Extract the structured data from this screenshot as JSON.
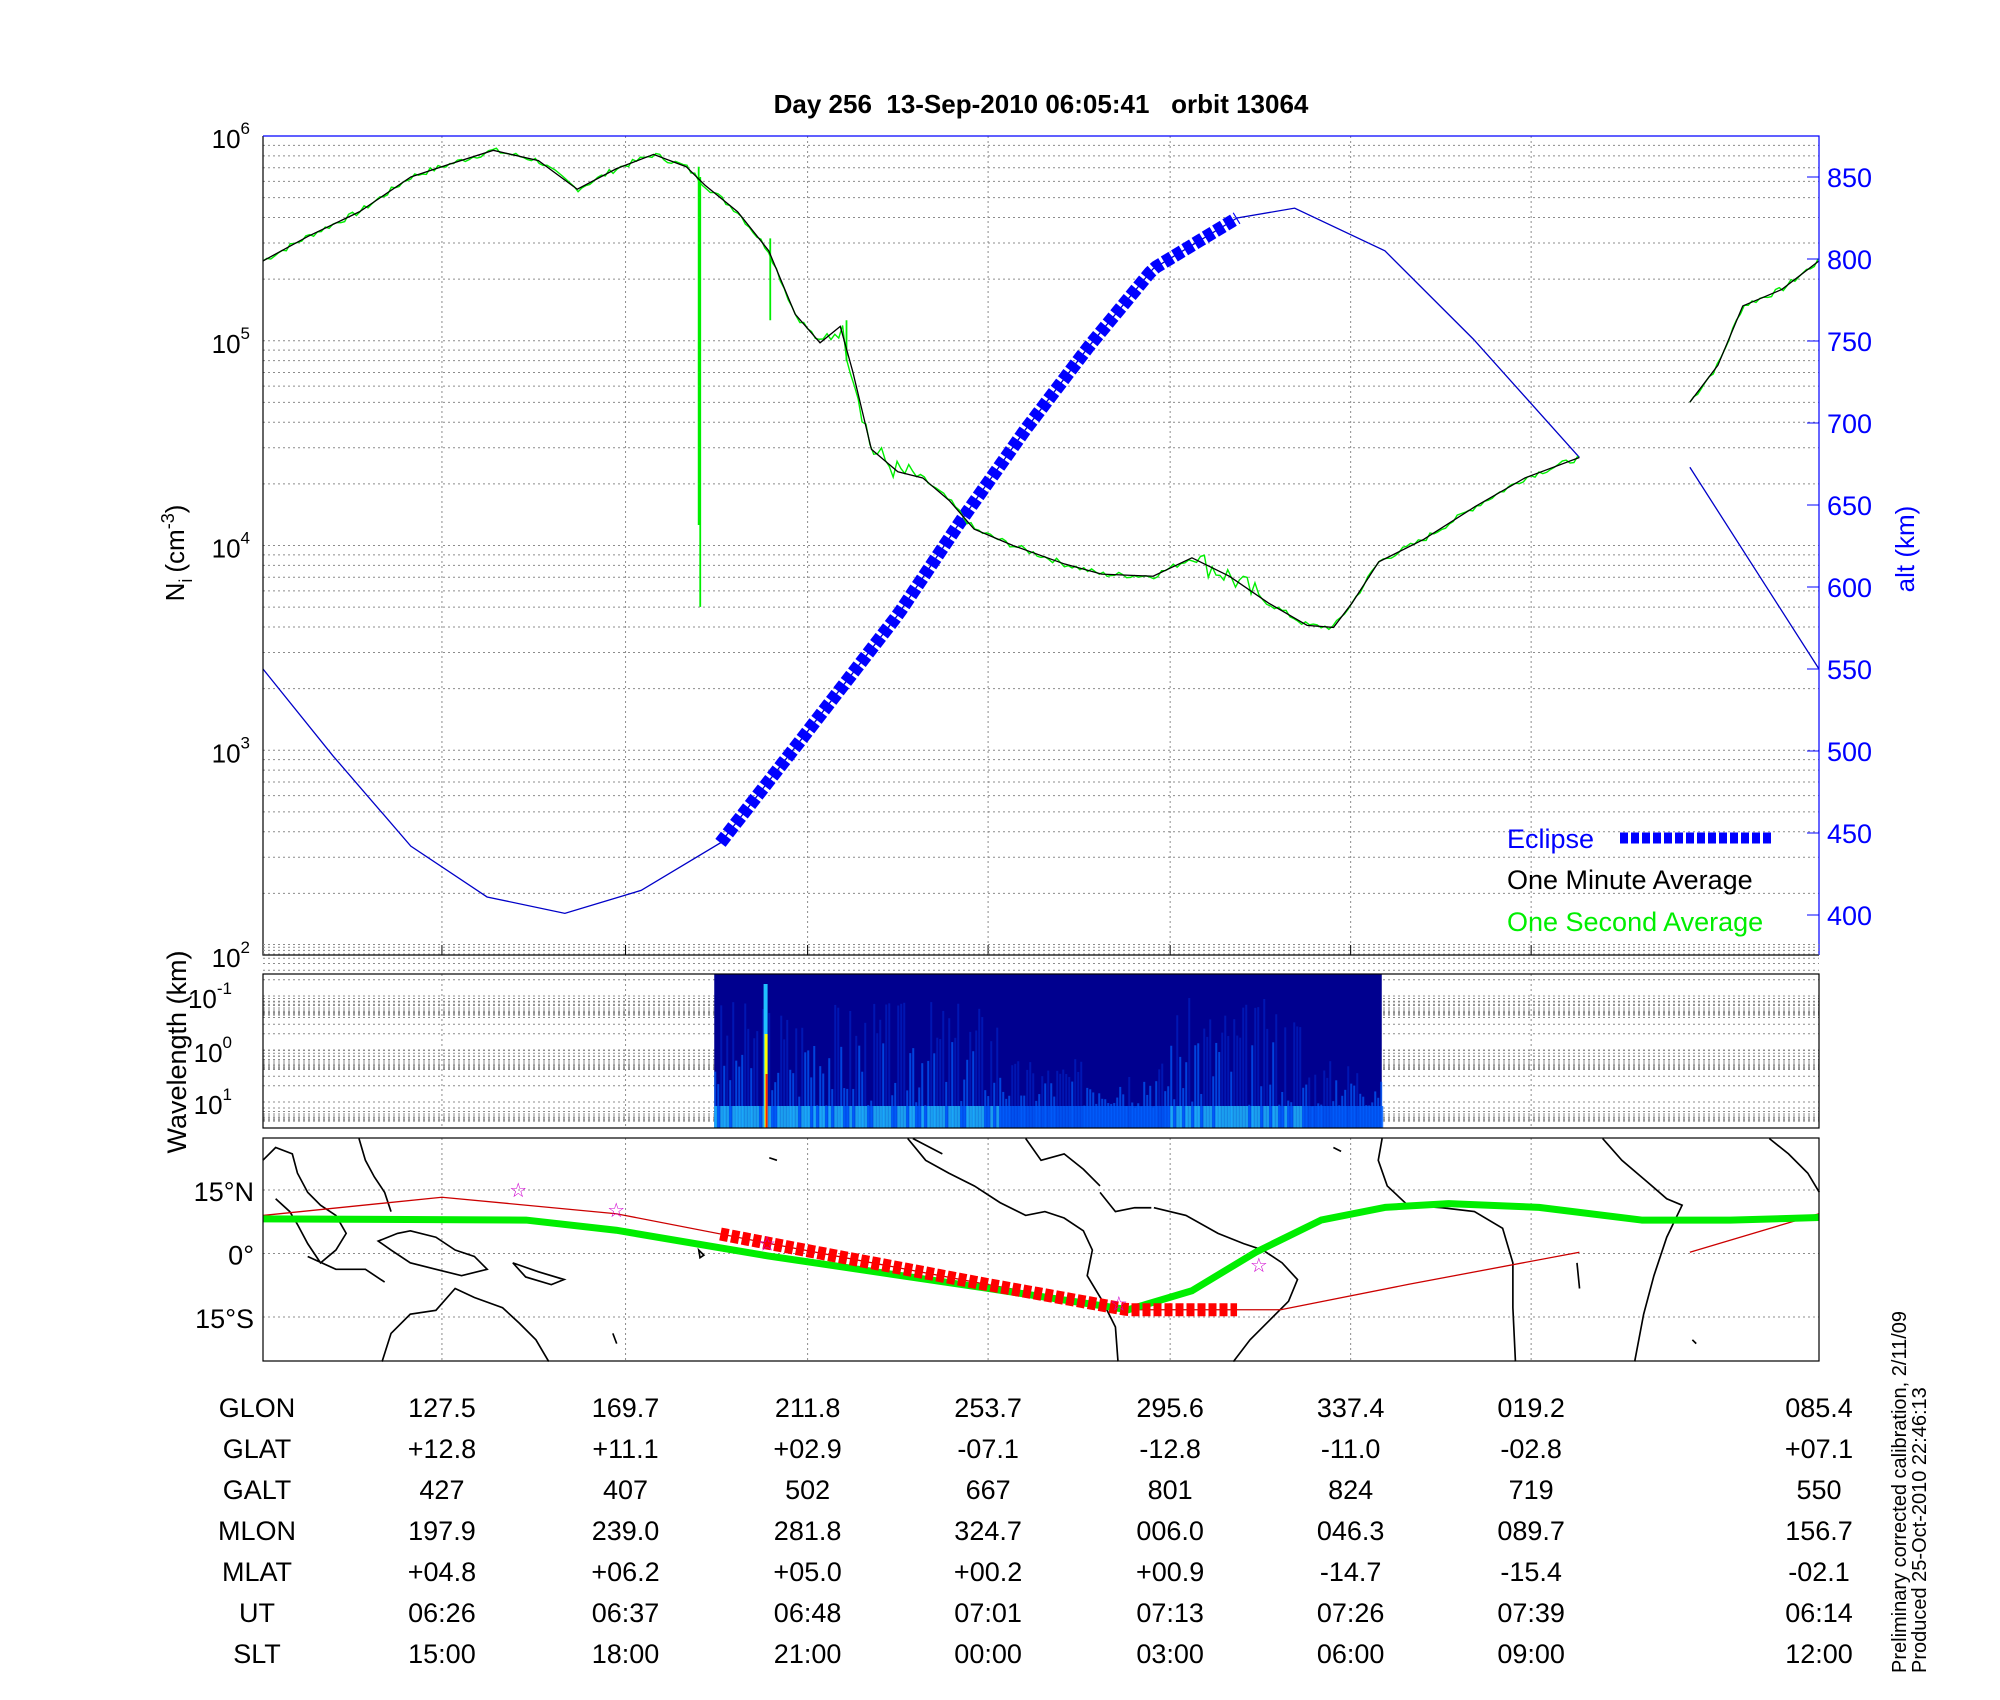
{
  "chart_data": [
    {
      "type": "line",
      "title": "Day 256  13-Sep-2010 06:05:41   orbit 13064",
      "xlabel": "",
      "x_units": "minutes from plot start",
      "xlim": [
        0,
        100
      ],
      "x_grid_ticks": [
        11.5,
        23.3,
        35.0,
        46.6,
        58.3,
        69.9,
        81.5
      ],
      "ylabel_left": {
        "base": "N",
        "sub": "i",
        "units": "(cm",
        "exp": "-3",
        "close": ")"
      },
      "ylabel_right": "alt (km)",
      "ylim_left_log10": [
        2,
        6
      ],
      "left_ticks": [
        {
          "base": "10",
          "exp": "6",
          "v": 6
        },
        {
          "base": "10",
          "exp": "5",
          "v": 5
        },
        {
          "base": "10",
          "exp": "4",
          "v": 4
        },
        {
          "base": "10",
          "exp": "3",
          "v": 3
        },
        {
          "base": "10",
          "exp": "2",
          "v": 2
        }
      ],
      "ylim_right": [
        375,
        875
      ],
      "right_ticks": [
        "850",
        "800",
        "750",
        "700",
        "650",
        "600",
        "550",
        "500",
        "450",
        "400"
      ],
      "grid": true,
      "legend": {
        "placement": "bottom-right",
        "entries": [
          "Eclipse",
          "One Minute Average",
          "One Second Average"
        ]
      },
      "colors": {
        "eclipse": "#0000ff",
        "minute": "#000000",
        "second": "#00ee00",
        "altitude": "#0000c8"
      },
      "series": [
        {
          "name": "One Minute Average",
          "y_log10": true,
          "segments": [
            [
              [
                0,
                5.39
              ],
              [
                2.9,
                5.51
              ],
              [
                6.2,
                5.63
              ],
              [
                9.5,
                5.8
              ],
              [
                11.9,
                5.86
              ],
              [
                14.8,
                5.93
              ],
              [
                17.7,
                5.88
              ],
              [
                20.2,
                5.74
              ],
              [
                22.7,
                5.84
              ],
              [
                25.1,
                5.91
              ],
              [
                27.2,
                5.85
              ],
              [
                28.4,
                5.76
              ],
              [
                30.5,
                5.63
              ],
              [
                32.5,
                5.44
              ],
              [
                34.2,
                5.13
              ],
              [
                35.8,
                4.99
              ],
              [
                37.1,
                5.07
              ],
              [
                37.9,
                4.85
              ],
              [
                39.1,
                4.47
              ],
              [
                40.8,
                4.36
              ],
              [
                42.4,
                4.33
              ],
              [
                44.1,
                4.22
              ],
              [
                45.7,
                4.08
              ],
              [
                48.2,
                4.0
              ],
              [
                51.5,
                3.91
              ],
              [
                53.9,
                3.86
              ],
              [
                57.2,
                3.85
              ],
              [
                59.7,
                3.94
              ],
              [
                62.1,
                3.85
              ],
              [
                64.6,
                3.72
              ],
              [
                67.1,
                3.61
              ],
              [
                68.8,
                3.6
              ],
              [
                70.0,
                3.72
              ],
              [
                71.7,
                3.92
              ],
              [
                74.6,
                4.03
              ],
              [
                77.9,
                4.19
              ],
              [
                81.1,
                4.33
              ],
              [
                84.6,
                4.43
              ]
            ],
            [
              [
                91.7,
                4.7
              ],
              [
                93.5,
                4.88
              ],
              [
                95.1,
                5.17
              ],
              [
                97.6,
                5.25
              ],
              [
                100,
                5.39
              ]
            ]
          ]
        },
        {
          "name": "One Second Average",
          "y_log10": true,
          "spikes": [
            [
              28.0,
              5.85,
              4.1
            ],
            [
              28.1,
              5.8,
              3.7
            ],
            [
              32.6,
              5.5,
              5.1
            ],
            [
              37.5,
              5.1,
              4.9
            ]
          ]
        },
        {
          "name": "Altitude",
          "units": "km",
          "segments": [
            [
              [
                0,
                550
              ],
              [
                4.5,
                497
              ],
              [
                9.5,
                442
              ],
              [
                14.4,
                411
              ],
              [
                19.4,
                401
              ],
              [
                24.3,
                415
              ],
              [
                29.4,
                444
              ],
              [
                35,
                512
              ],
              [
                40.8,
                583
              ],
              [
                44.9,
                641
              ],
              [
                49,
                696
              ],
              [
                53.1,
                747
              ],
              [
                57.2,
                794
              ],
              [
                62.6,
                825
              ],
              [
                66.3,
                831
              ],
              [
                72.1,
                805
              ],
              [
                77.8,
                751
              ],
              [
                84.6,
                679
              ]
            ],
            [
              [
                91.7,
                673
              ],
              [
                100,
                550
              ]
            ]
          ]
        },
        {
          "name": "Eclipse",
          "x_range": [
            29.4,
            62.6
          ]
        }
      ],
      "legend_labels": {
        "eclipse": "Eclipse",
        "minute": "One Minute Average",
        "second": "One Second Average"
      }
    },
    {
      "type": "heatmap",
      "ylabel": "Wavelength (km)",
      "y_ticks": [
        {
          "base": "10",
          "exp": "-1"
        },
        {
          "base": "10",
          "exp": "0"
        },
        {
          "base": "10",
          "exp": "1"
        }
      ],
      "data_x_range": [
        29.0,
        71.9
      ],
      "spike_x": 32.3,
      "colormap": [
        "#00008f",
        "#0020c0",
        "#0060ff",
        "#20c0ff",
        "#ffff00",
        "#ff2000"
      ]
    },
    {
      "type": "line",
      "name": "ground track map",
      "y_ticks": [
        "15°N",
        "0°",
        "15°S"
      ],
      "ylim_deg": [
        -26,
        27
      ],
      "tracks": [
        {
          "name": "orbit track",
          "color": "#cc0000",
          "segments": [
            [
              [
                0,
                9
              ],
              [
                11.5,
                13.3
              ],
              [
                22.7,
                9.4
              ],
              [
                32.5,
                2.4
              ],
              [
                46.5,
                -7.3
              ],
              [
                55.6,
                -13.3
              ],
              [
                65.4,
                -13.3
              ],
              [
                73.6,
                -7.3
              ],
              [
                84.6,
                0.3
              ]
            ],
            [
              [
                91.7,
                0.3
              ],
              [
                100,
                9.4
              ]
            ]
          ],
          "eclipse_range": [
            29.4,
            62.6
          ],
          "eclipse_color": "#ff0000"
        },
        {
          "name": "magnetic equator",
          "color": "#00ee00",
          "points": [
            [
              0,
              8.2
            ],
            [
              16.9,
              7.9
            ],
            [
              22.7,
              5.5
            ],
            [
              32.5,
              -0.6
            ],
            [
              46.5,
              -8.2
            ],
            [
              55.6,
              -13.3
            ],
            [
              59.7,
              -8.8
            ],
            [
              63.8,
              0.3
            ],
            [
              68,
              7.9
            ],
            [
              72.1,
              10.9
            ],
            [
              76.2,
              11.8
            ],
            [
              82,
              10.9
            ],
            [
              88.6,
              7.9
            ],
            [
              94.3,
              7.9
            ],
            [
              100,
              8.5
            ]
          ]
        }
      ],
      "stars": [
        [
          16.4,
          15
        ],
        [
          22.7,
          10.3
        ],
        [
          32.4,
          2.4
        ],
        [
          55,
          -11.8
        ],
        [
          64,
          -2.7
        ]
      ]
    }
  ],
  "table": {
    "rows": [
      {
        "label": "GLON",
        "values": [
          "127.5",
          "169.7",
          "211.8",
          "253.7",
          "295.6",
          "337.4",
          "019.2",
          "085.4"
        ]
      },
      {
        "label": "GLAT",
        "values": [
          "+12.8",
          "+11.1",
          "+02.9",
          "-07.1",
          "-12.8",
          "-11.0",
          "-02.8",
          "+07.1"
        ]
      },
      {
        "label": "GALT",
        "values": [
          "427",
          "407",
          "502",
          "667",
          "801",
          "824",
          "719",
          "550"
        ]
      },
      {
        "label": "MLON",
        "values": [
          "197.9",
          "239.0",
          "281.8",
          "324.7",
          "006.0",
          "046.3",
          "089.7",
          "156.7"
        ]
      },
      {
        "label": "MLAT",
        "values": [
          "+04.8",
          "+06.2",
          "+05.0",
          "+00.2",
          "+00.9",
          "-14.7",
          "-15.4",
          "-02.1"
        ]
      },
      {
        "label": "UT",
        "values": [
          "06:26",
          "06:37",
          "06:48",
          "07:01",
          "07:13",
          "07:26",
          "07:39",
          "06:14"
        ]
      },
      {
        "label": "SLT",
        "values": [
          "15:00",
          "18:00",
          "21:00",
          "00:00",
          "03:00",
          "06:00",
          "09:00",
          "12:00"
        ]
      }
    ]
  },
  "footer": {
    "line1": "Preliminary corrected calibration, 2/11/09",
    "line2": "Produced 25-Oct-2010 22:46:13"
  }
}
